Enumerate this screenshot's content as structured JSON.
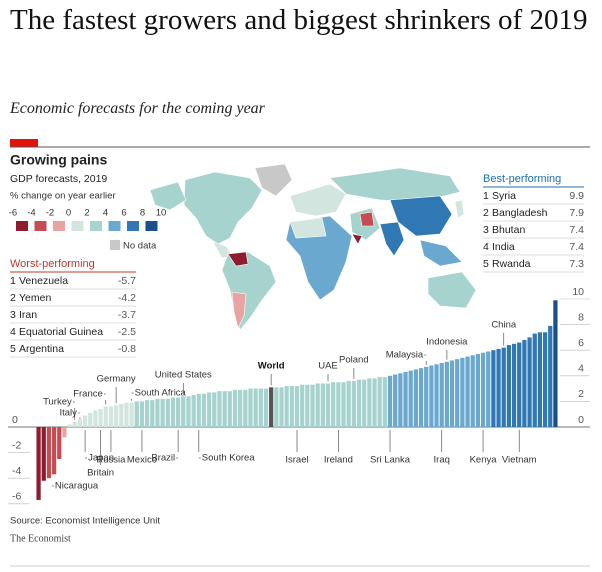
{
  "header": {
    "title": "The fastest growers and biggest shrinkers of 2019",
    "subtitle": "Economic forecasts for the coming year"
  },
  "chart_data": {
    "type": "bar",
    "title": "Growing pains",
    "subtitle": "GDP forecasts, 2019",
    "unit_note": "% change on year earlier",
    "color_scale": {
      "bins": [
        -6,
        -4,
        -2,
        0,
        2,
        4,
        6,
        8,
        10
      ],
      "colors": [
        "#8e1b2e",
        "#c74b52",
        "#e8a3a3",
        "#d3e5df",
        "#a7d3cf",
        "#6aa8cf",
        "#2f78b4",
        "#1a4f8c"
      ]
    },
    "no_data": {
      "label": "No data",
      "color": "#c8c8c8"
    },
    "highlight": "World",
    "highlight_color": "#555555",
    "worst": {
      "title": "Worst-performing",
      "color": "#c0392b",
      "items": [
        {
          "rank": 1,
          "name": "Venezuela",
          "value": -5.7
        },
        {
          "rank": 2,
          "name": "Yemen",
          "value": -4.2
        },
        {
          "rank": 3,
          "name": "Iran",
          "value": -3.7
        },
        {
          "rank": 4,
          "name": "Equatorial Guinea",
          "value": -2.5
        },
        {
          "rank": 5,
          "name": "Argentina",
          "value": -0.8
        }
      ]
    },
    "best": {
      "title": "Best-performing",
      "color": "#1f6fb2",
      "items": [
        {
          "rank": 1,
          "name": "Syria",
          "value": 9.9
        },
        {
          "rank": 2,
          "name": "Bangladesh",
          "value": 7.9
        },
        {
          "rank": 3,
          "name": "Bhutan",
          "value": 7.4
        },
        {
          "rank": 4,
          "name": "India",
          "value": 7.4
        },
        {
          "rank": 5,
          "name": "Rwanda",
          "value": 7.3
        }
      ]
    },
    "categories": [
      null,
      null,
      "Nicaragua",
      null,
      null,
      null,
      null,
      "Turkey",
      "Italy",
      "Japan",
      null,
      null,
      "Britain",
      "France",
      "Russia",
      "Germany",
      null,
      null,
      "South Africa",
      null,
      "Mexico",
      null,
      null,
      null,
      null,
      null,
      null,
      "Brazil",
      "United States",
      null,
      null,
      "South Korea",
      null,
      null,
      null,
      null,
      null,
      null,
      null,
      null,
      null,
      null,
      null,
      null,
      null,
      "World",
      null,
      null,
      null,
      null,
      "Israel",
      null,
      null,
      null,
      null,
      null,
      "UAE",
      null,
      "Ireland",
      null,
      null,
      "Poland",
      null,
      null,
      null,
      null,
      null,
      null,
      "Sri Lanka",
      null,
      null,
      null,
      null,
      null,
      null,
      "Malaysia",
      null,
      null,
      "Iraq",
      "Indonesia",
      null,
      null,
      null,
      null,
      null,
      null,
      "Kenya",
      null,
      null,
      null,
      "China",
      null,
      null,
      "Vietnam",
      null,
      null,
      null,
      null,
      null,
      null,
      null
    ],
    "values": [
      -5.7,
      -4.2,
      -4,
      -3.7,
      -2.5,
      -0.8,
      0.2,
      0.4,
      0.6,
      0.9,
      1.1,
      1.3,
      1.4,
      1.6,
      1.6,
      1.7,
      1.8,
      1.9,
      1.9,
      2,
      2,
      2.1,
      2.1,
      2.2,
      2.2,
      2.2,
      2.3,
      2.3,
      2.4,
      2.4,
      2.5,
      2.6,
      2.6,
      2.7,
      2.7,
      2.8,
      2.8,
      2.8,
      2.9,
      2.9,
      2.9,
      3,
      3,
      3,
      3,
      3.1,
      3.1,
      3.1,
      3.2,
      3.2,
      3.2,
      3.3,
      3.3,
      3.3,
      3.4,
      3.4,
      3.4,
      3.5,
      3.5,
      3.5,
      3.6,
      3.6,
      3.7,
      3.7,
      3.8,
      3.8,
      3.9,
      3.9,
      4,
      4.1,
      4.2,
      4.3,
      4.4,
      4.5,
      4.6,
      4.7,
      4.8,
      4.9,
      5,
      5.1,
      5.2,
      5.3,
      5.4,
      5.5,
      5.6,
      5.7,
      5.8,
      5.9,
      6,
      6.1,
      6.2,
      6.4,
      6.5,
      6.6,
      6.8,
      7,
      7.3,
      7.4,
      7.4,
      7.9,
      9.9
    ],
    "ylim": [
      -6.5,
      10.5
    ],
    "yticks": [
      -6,
      -4,
      -2,
      0,
      2,
      4,
      6,
      8,
      10
    ]
  },
  "footer": {
    "source": "Source: Economist Intelligence Unit",
    "brand": "The Economist"
  }
}
